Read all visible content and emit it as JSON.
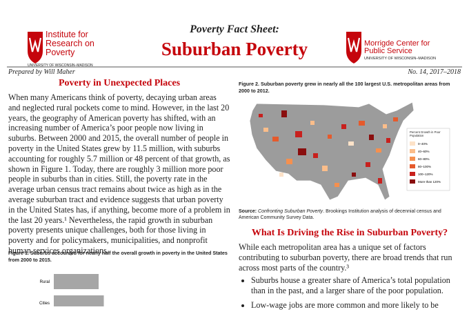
{
  "header": {
    "left_logo": {
      "name": "Institute for Research on Poverty",
      "university": "UNIVERSITY OF WISCONSIN–MADISON"
    },
    "series": "Poverty Fact Sheet:",
    "title": "Suburban Poverty",
    "right_logo": {
      "name": "Morrigde Center for Public Service",
      "university": "UNIVERSITY OF WISCONSIN–MADISON"
    },
    "author": "Prepared by Will Maher",
    "issue": "No. 14, 2017–2018"
  },
  "section1": {
    "heading": "Poverty in Unexpected Places",
    "paragraph": "When many Americans think of poverty, decaying urban areas and neglected rural pockets come to mind. However, in the last 20 years, the geography of American poverty has shifted, with an increasing number of America’s poor people now living in suburbs. Between 2000 and 2015, the overall number of people in poverty in the United States grew by 11.5 million, with suburbs accounting for roughly 5.7 million or 48 percent of that growth, as shown in Figure 1. Today, there are roughly 3 million more poor people in suburbs than in cities. Still, the poverty rate in the average urban census tract remains about twice as high as in the average suburban tract and evidence suggests that urban poverty in the United States has, if anything, become more of a problem in the last 20 years.¹ Nevertheless, the rapid growth in suburban poverty presents unique challenges, both for those living in poverty and for policymakers, municipalities, and nonprofit human services organizations."
  },
  "figure1": {
    "caption": "Figure 1. Suburbs accounted for nearly half the overall growth in poverty in the United States from 2000 to 2015.",
    "categories": [
      "Rural",
      "Cities"
    ],
    "values": [
      1.3,
      1.45
    ]
  },
  "figure2": {
    "caption": "Figure 2. Suburban poverty grew in nearly all the 100 largest U.S. metropolitan areas from 2000 to 2012.",
    "legend_title": "Percent Growth in Poor Population",
    "legend": [
      "0–40%",
      "40–60%",
      "60–80%",
      "80–100%",
      "100–120%",
      "More than 120%"
    ],
    "legend_colors": [
      "#fde2c8",
      "#fbbd8a",
      "#f5904f",
      "#e55a2c",
      "#c8201d",
      "#8a0e0e"
    ],
    "source_label": "Source:",
    "source_title": "Confronting Suburban Poverty",
    "source_rest": ". Brookings Institution analysis of decennial census and American Community Survey Data."
  },
  "section2": {
    "heading": "What Is Driving the Rise in Suburban Poverty?",
    "paragraph": "While each metropolitan area has a unique set of factors contributing to suburban poverty, there are broad trends that run across most parts of the country.³",
    "bullets": [
      "Suburbs house a greater share of America’s total population than in the past, and a larger share of the poor population.",
      "Low-wage jobs are more common and more likely to be"
    ]
  }
}
